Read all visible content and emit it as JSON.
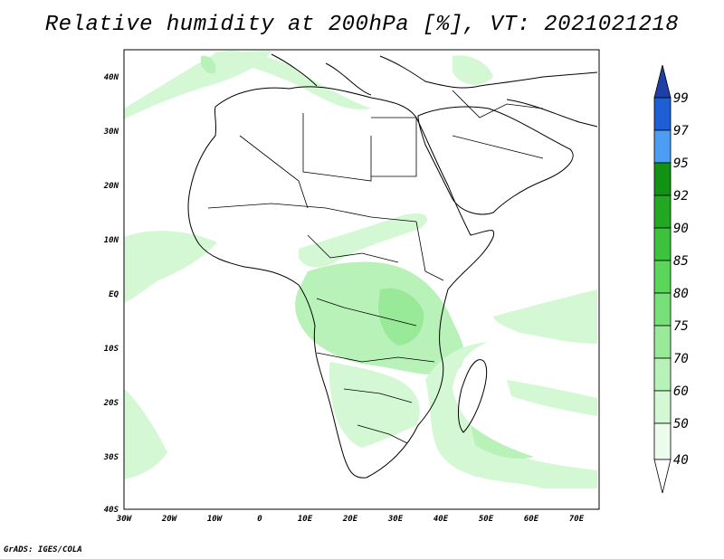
{
  "map": {
    "title": "Relative humidity at 200hPa [%], VT: 2021021218",
    "lon_ticks": [
      "30W",
      "20W",
      "10W",
      "0",
      "10E",
      "20E",
      "30E",
      "40E",
      "50E",
      "60E",
      "70E"
    ],
    "lat_ticks": [
      "40N",
      "30N",
      "20N",
      "10N",
      "EQ",
      "10S",
      "20S",
      "30S",
      "40S"
    ],
    "extent": {
      "lon": [
        -30,
        75
      ],
      "lat": [
        -40,
        44
      ]
    },
    "credit": "GrADS: IGES/COLA"
  },
  "colorbar": {
    "levels": [
      "99",
      "97",
      "95",
      "92",
      "90",
      "85",
      "80",
      "75",
      "70",
      "60",
      "50",
      "40"
    ],
    "colors": [
      "#1f5fd6",
      "#2b7ae6",
      "#4c9ef2",
      "#129212",
      "#22a822",
      "#3cc23c",
      "#5ad65a",
      "#78e078",
      "#98ea98",
      "#b8f2b8",
      "#d4f8d4",
      "#ecfcec"
    ],
    "extend_top_color": "#1e3fa8"
  },
  "humidity_shading": {
    "colors": {
      "level_50": "#d4f8d4",
      "level_60": "#b8f2b8",
      "level_70": "#98ea98",
      "level_75": "#78e078"
    },
    "regions": [
      "Congo basin and Great Lakes",
      "Southern Indian Ocean swirl",
      "Tropical Atlantic west of Africa",
      "Mediterranean",
      "Sahel 10N band",
      "Southern Africa"
    ]
  }
}
